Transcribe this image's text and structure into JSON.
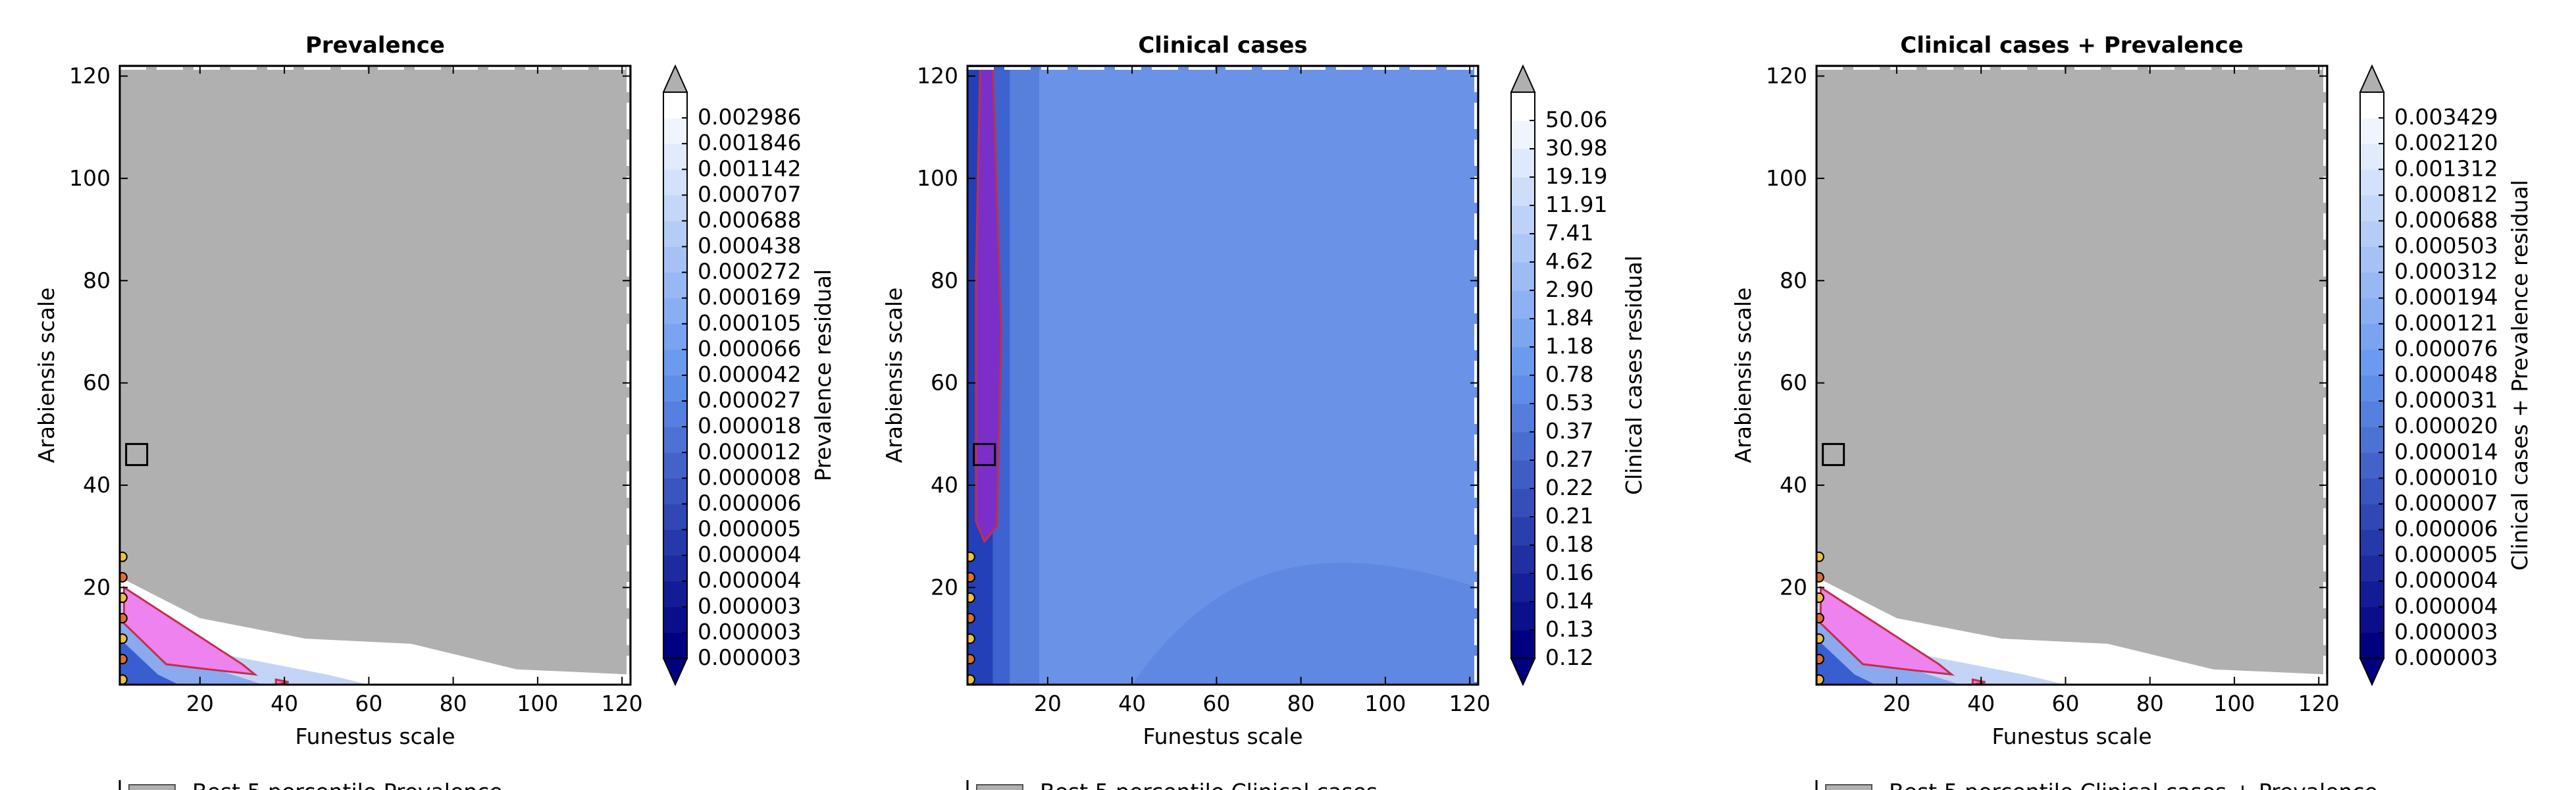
{
  "chart_data": [
    {
      "type": "heatmap",
      "title": "Prevalence",
      "xlabel": "Funestus scale",
      "ylabel": "Arabiensis scale",
      "xlim": [
        1,
        122
      ],
      "ylim": [
        1,
        122
      ],
      "x_ticks": [
        20,
        40,
        60,
        80,
        100,
        120
      ],
      "y_ticks": [
        20,
        40,
        60,
        80,
        100,
        120
      ],
      "colorbar_label": "Prevalence residual",
      "colorbar_levels": [
        "0.000003",
        "0.000003",
        "0.000003",
        "0.000004",
        "0.000004",
        "0.000005",
        "0.000006",
        "0.000008",
        "0.000012",
        "0.000018",
        "0.000027",
        "0.000042",
        "0.000066",
        "0.000105",
        "0.000169",
        "0.000272",
        "0.000438",
        "0.000688",
        "0.000707",
        "0.001142",
        "0.001846",
        "0.002986"
      ],
      "best_fit_marker": {
        "x": 5,
        "y": 46
      },
      "legend_partial": "Best 5 percentile Prevalence"
    },
    {
      "type": "heatmap",
      "title": "Clinical cases",
      "xlabel": "Funestus scale",
      "ylabel": "Arabiensis scale",
      "xlim": [
        1,
        122
      ],
      "ylim": [
        1,
        122
      ],
      "x_ticks": [
        20,
        40,
        60,
        80,
        100,
        120
      ],
      "y_ticks": [
        20,
        40,
        60,
        80,
        100,
        120
      ],
      "colorbar_label": "Clinical cases residual",
      "colorbar_levels": [
        "0.12",
        "0.13",
        "0.14",
        "0.16",
        "0.18",
        "0.21",
        "0.22",
        "0.27",
        "0.37",
        "0.53",
        "0.78",
        "1.18",
        "1.84",
        "2.90",
        "4.62",
        "7.41",
        "11.91",
        "19.19",
        "30.98",
        "50.06"
      ],
      "best_fit_marker": {
        "x": 5,
        "y": 46
      },
      "legend_partial": "Best 5 percentile Clinical cases"
    },
    {
      "type": "heatmap",
      "title": "Clinical cases + Prevalence",
      "xlabel": "Funestus scale",
      "ylabel": "Arabiensis scale",
      "xlim": [
        1,
        122
      ],
      "ylim": [
        1,
        122
      ],
      "x_ticks": [
        20,
        40,
        60,
        80,
        100,
        120
      ],
      "y_ticks": [
        20,
        40,
        60,
        80,
        100,
        120
      ],
      "colorbar_label": "Clinical cases + Prevalence residual",
      "colorbar_levels": [
        "0.000003",
        "0.000003",
        "0.000004",
        "0.000004",
        "0.000005",
        "0.000006",
        "0.000007",
        "0.000010",
        "0.000014",
        "0.000020",
        "0.000031",
        "0.000048",
        "0.000076",
        "0.000121",
        "0.000194",
        "0.000312",
        "0.000503",
        "0.000688",
        "0.000812",
        "0.001312",
        "0.002120",
        "0.003429"
      ],
      "best_fit_marker": {
        "x": 5,
        "y": 46
      },
      "legend_partial": "Best 5 percentile Clinical cases + Prevalence"
    }
  ],
  "colors": {
    "gray_region": "#b0b0b0",
    "cmap_low": "#000080",
    "cmap_mid": "#6495ed",
    "cmap_high": "#ffffff",
    "best_region_fill": "#ee82ee",
    "best_region_edge": "#c0304a",
    "marker_edge": "#000000"
  }
}
